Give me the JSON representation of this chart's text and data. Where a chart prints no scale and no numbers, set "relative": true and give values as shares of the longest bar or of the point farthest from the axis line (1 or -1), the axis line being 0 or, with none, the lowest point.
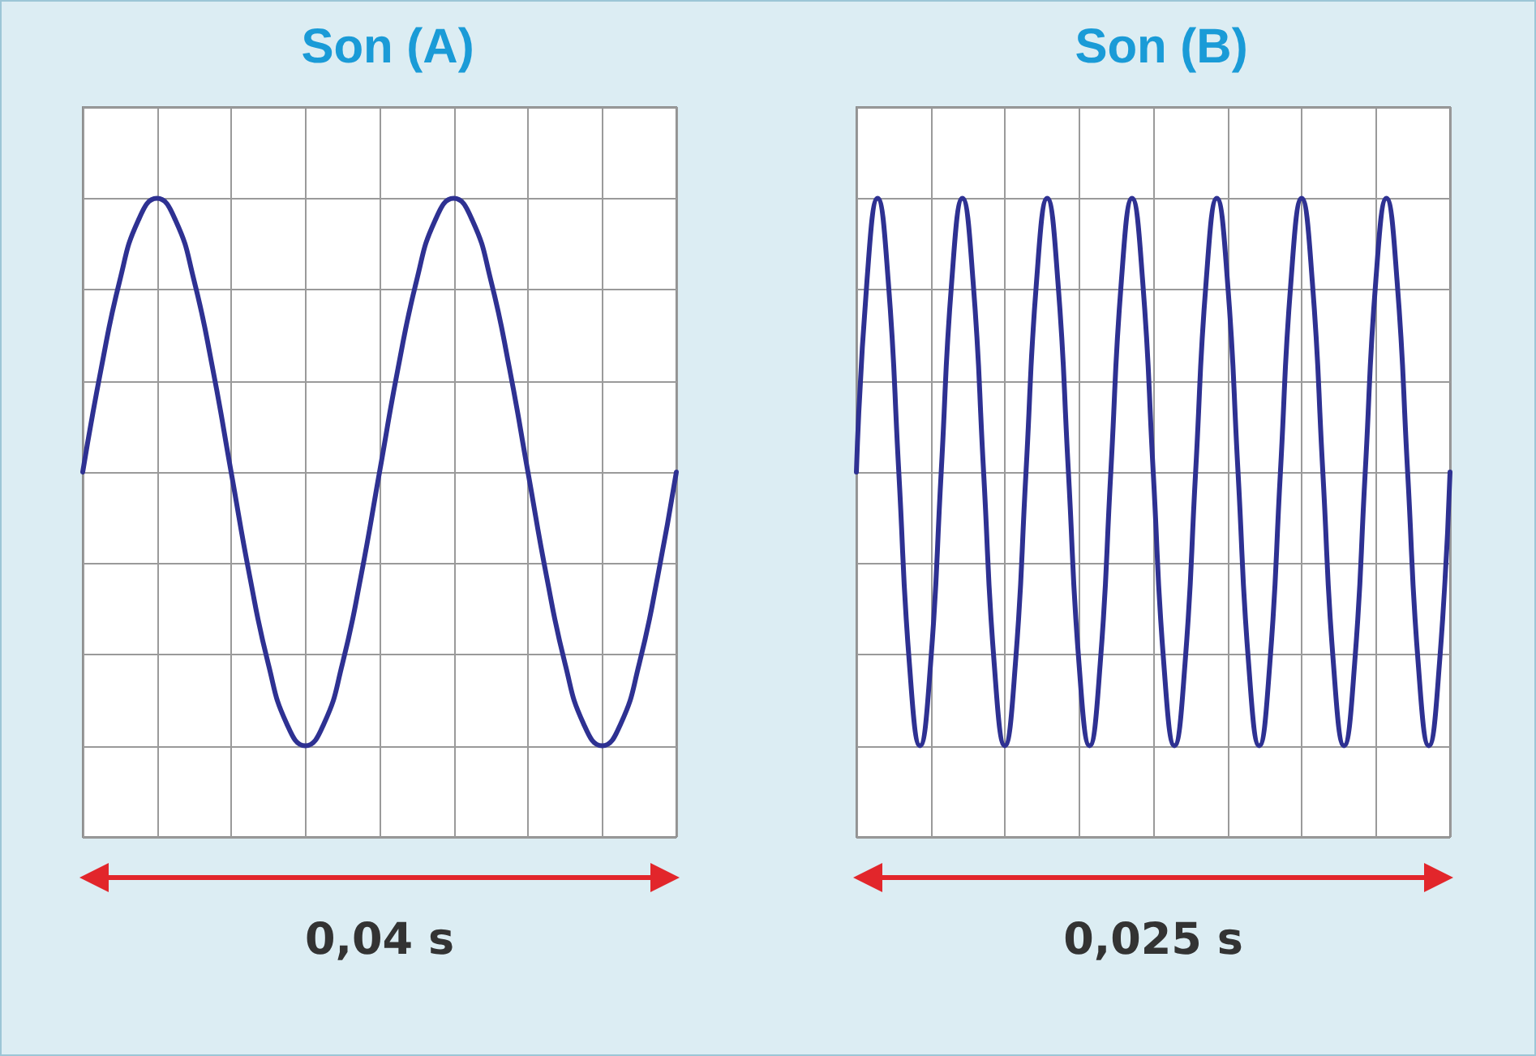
{
  "chart_data": [
    {
      "type": "line",
      "title": "Son (A)",
      "relative": true,
      "grid": true,
      "annotations": [
        "0,04 s"
      ],
      "categories": [
        null,
        null,
        null,
        null,
        null,
        null,
        null,
        null,
        null,
        null,
        null,
        null,
        null,
        null,
        null,
        null,
        null,
        null,
        null,
        null,
        null,
        null,
        null,
        null,
        null,
        null,
        null,
        null,
        null,
        null,
        null,
        null,
        null
      ],
      "series": [
        {
          "color": "#2e3192",
          "values": [
            0.5,
            0.69,
            0.85,
            0.96,
            1,
            0.96,
            0.85,
            0.69,
            0.5,
            0.31,
            0.15,
            0.04,
            0,
            0.04,
            0.15,
            0.31,
            0.5,
            0.69,
            0.85,
            0.96,
            1,
            0.96,
            0.85,
            0.69,
            0.5,
            0.31,
            0.15,
            0.04,
            0,
            0.04,
            0.15,
            0.31,
            0.5
          ]
        }
      ]
    },
    {
      "type": "line",
      "title": "Son (B)",
      "relative": true,
      "grid": true,
      "annotations": [
        "0,025 s"
      ],
      "categories": [
        null,
        null,
        null,
        null,
        null,
        null,
        null,
        null,
        null,
        null,
        null,
        null,
        null,
        null,
        null,
        null,
        null,
        null,
        null,
        null,
        null,
        null,
        null,
        null,
        null,
        null,
        null,
        null,
        null,
        null,
        null,
        null,
        null,
        null,
        null,
        null,
        null,
        null,
        null,
        null,
        null,
        null,
        null,
        null,
        null,
        null,
        null,
        null,
        null,
        null,
        null,
        null,
        null,
        null,
        null,
        null,
        null
      ],
      "series": [
        {
          "color": "#2e3192",
          "values": [
            0.5,
            0.85,
            1,
            0.85,
            0.5,
            0.15,
            0,
            0.15,
            0.5,
            0.85,
            1,
            0.85,
            0.5,
            0.15,
            0,
            0.15,
            0.5,
            0.85,
            1,
            0.85,
            0.5,
            0.15,
            0,
            0.15,
            0.5,
            0.85,
            1,
            0.85,
            0.5,
            0.15,
            0,
            0.15,
            0.5,
            0.85,
            1,
            0.85,
            0.5,
            0.15,
            0,
            0.15,
            0.5,
            0.85,
            1,
            0.85,
            0.5,
            0.15,
            0,
            0.15,
            0.5,
            0.85,
            1,
            0.85,
            0.5,
            0.15,
            0,
            0.15,
            0.5
          ]
        }
      ]
    }
  ]
}
